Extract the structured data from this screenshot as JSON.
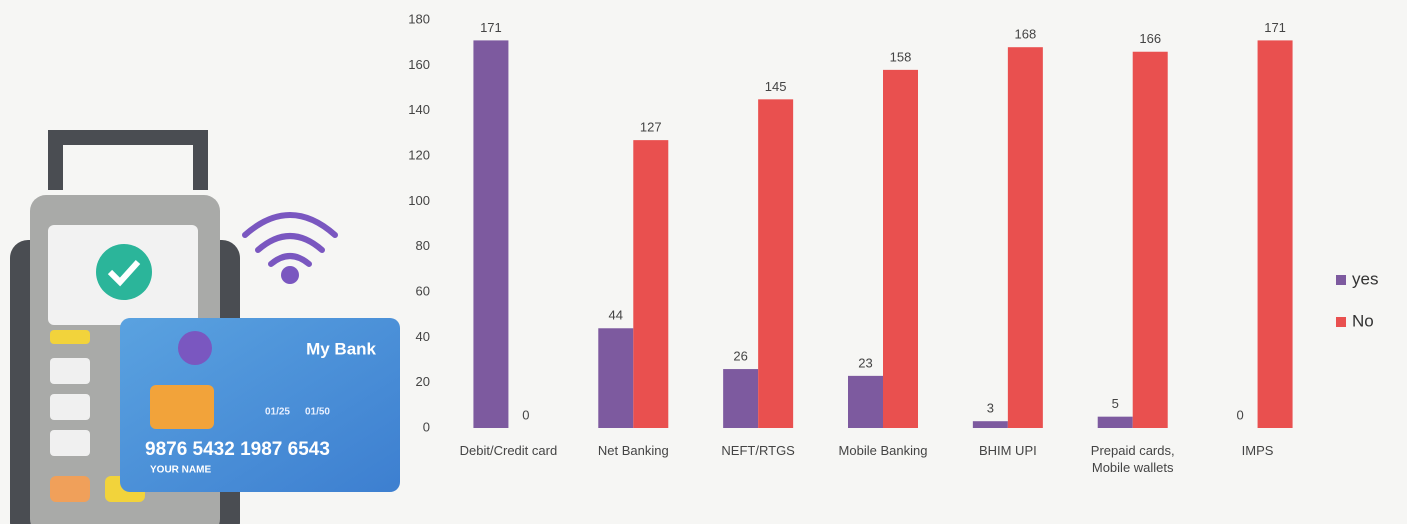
{
  "chart_data": {
    "type": "bar",
    "categories": [
      "Debit/Credit card",
      "Net Banking",
      "NEFT/RTGS",
      "Mobile Banking",
      "BHIM UPI",
      "Prepaid cards, Mobile wallets",
      "IMPS"
    ],
    "series": [
      {
        "name": "yes",
        "color": "#7d5a9f",
        "values": [
          171,
          44,
          26,
          23,
          3,
          5,
          0
        ]
      },
      {
        "name": "No",
        "color": "#e9504f",
        "values": [
          0,
          127,
          145,
          158,
          168,
          166,
          171
        ]
      }
    ],
    "ylim": [
      0,
      180
    ],
    "yticks": [
      0,
      20,
      40,
      60,
      80,
      100,
      120,
      140,
      160,
      180
    ],
    "grid": false,
    "legend": "right"
  },
  "illustration": {
    "bank": "My Bank",
    "date_from": "01/25",
    "date_to": "01/50",
    "number": "9876 5432 1987 6543",
    "holder": "YOUR NAME"
  }
}
